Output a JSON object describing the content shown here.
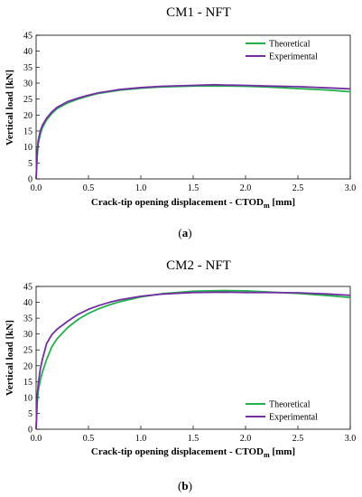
{
  "chart_data": [
    {
      "type": "line",
      "title": "CM1 - NFT",
      "xlabel": "Crack-tip opening displacement - CTOD",
      "xlabel_sub": "m",
      "xlabel_unit": " [mm]",
      "ylabel": "Vertical load [kN]",
      "xlim": [
        0,
        3.0
      ],
      "ylim": [
        0,
        45
      ],
      "xticks": [
        "0.0",
        "0.5",
        "1.0",
        "1.5",
        "2.0",
        "2.5",
        "3.0"
      ],
      "yticks": [
        "0",
        "5",
        "10",
        "15",
        "20",
        "25",
        "30",
        "35",
        "40",
        "45"
      ],
      "grid": false,
      "legend": "top-right",
      "caption_open": "(",
      "caption_letter": "a",
      "caption_close": ")",
      "series": [
        {
          "name": "Theoretical",
          "color": "#22b14c",
          "x": [
            0,
            0.01,
            0.02,
            0.04,
            0.06,
            0.1,
            0.15,
            0.2,
            0.3,
            0.4,
            0.5,
            0.6,
            0.7,
            0.8,
            1.0,
            1.2,
            1.5,
            1.8,
            2.0,
            2.2,
            2.5,
            2.8,
            3.0
          ],
          "y": [
            0,
            7,
            11,
            14,
            16,
            18.5,
            20.5,
            22,
            23.8,
            25,
            26,
            26.8,
            27.3,
            27.8,
            28.4,
            28.8,
            29.1,
            29.1,
            29.0,
            28.8,
            28.3,
            27.8,
            27.3
          ]
        },
        {
          "name": "Experimental",
          "color": "#7030a0",
          "x": [
            0,
            0.01,
            0.02,
            0.04,
            0.06,
            0.1,
            0.15,
            0.2,
            0.3,
            0.4,
            0.5,
            0.6,
            0.7,
            0.8,
            1.0,
            1.2,
            1.5,
            1.7,
            1.8,
            2.0,
            2.2,
            2.5,
            2.8,
            3.0
          ],
          "y": [
            0,
            8,
            12,
            15,
            16.8,
            19,
            21,
            22.4,
            24.2,
            25.3,
            26.2,
            27,
            27.5,
            28,
            28.6,
            29.0,
            29.3,
            29.5,
            29.4,
            29.3,
            29.1,
            28.9,
            28.5,
            28.2
          ]
        }
      ]
    },
    {
      "type": "line",
      "title": "CM2 - NFT",
      "xlabel": "Crack-tip opening displacement - CTOD",
      "xlabel_sub": "m",
      "xlabel_unit": " [mm]",
      "ylabel": "Vertical load [kN]",
      "xlim": [
        0,
        3.0
      ],
      "ylim": [
        0,
        45
      ],
      "xticks": [
        "0.0",
        "0.5",
        "1.0",
        "1.5",
        "2.0",
        "2.5",
        "3.0"
      ],
      "yticks": [
        "0",
        "5",
        "10",
        "15",
        "20",
        "25",
        "30",
        "35",
        "40",
        "45"
      ],
      "grid": false,
      "legend": "bottom-right",
      "caption_open": "(",
      "caption_letter": "b",
      "caption_close": ")",
      "series": [
        {
          "name": "Theoretical",
          "color": "#22b14c",
          "x": [
            0,
            0.01,
            0.02,
            0.04,
            0.06,
            0.1,
            0.15,
            0.2,
            0.3,
            0.4,
            0.5,
            0.6,
            0.7,
            0.8,
            1.0,
            1.2,
            1.5,
            1.8,
            2.0,
            2.2,
            2.5,
            2.8,
            3.0
          ],
          "y": [
            0,
            8,
            12,
            15.5,
            18,
            22,
            26,
            28.5,
            32,
            34.6,
            36.5,
            38,
            39.2,
            40.2,
            41.7,
            42.7,
            43.5,
            43.7,
            43.6,
            43.3,
            42.8,
            42.1,
            41.5
          ]
        },
        {
          "name": "Experimental",
          "color": "#7030a0",
          "x": [
            0,
            0.01,
            0.02,
            0.04,
            0.06,
            0.1,
            0.15,
            0.2,
            0.3,
            0.4,
            0.5,
            0.6,
            0.7,
            0.8,
            1.0,
            1.2,
            1.5,
            1.8,
            2.0,
            2.2,
            2.5,
            2.8,
            3.0
          ],
          "y": [
            0,
            10,
            14,
            19,
            22,
            27,
            29.8,
            31.5,
            34,
            36.2,
            37.8,
            39,
            40,
            40.8,
            41.9,
            42.6,
            43.1,
            43.2,
            43.1,
            43.1,
            43.0,
            42.6,
            42.2
          ]
        }
      ]
    }
  ]
}
